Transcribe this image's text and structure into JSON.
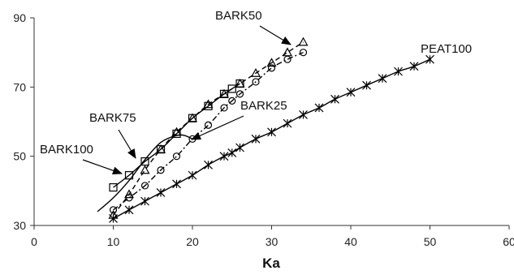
{
  "chart_data": {
    "type": "scatter",
    "title": "",
    "xlabel": "Ka",
    "ylabel": "",
    "xlim": [
      0,
      60
    ],
    "ylim": [
      30,
      90
    ],
    "xticks": [
      0,
      10,
      20,
      30,
      40,
      50,
      60
    ],
    "yticks": [
      30,
      50,
      70,
      90
    ],
    "grid": false,
    "legend": "none",
    "series": [
      {
        "name": "PEAT100",
        "marker": "asterisk",
        "line": "solid",
        "x": [
          10,
          12,
          14,
          16,
          18,
          20,
          22,
          24,
          25,
          26,
          28,
          30,
          32,
          34,
          36,
          38,
          40,
          42,
          44,
          46,
          48,
          50
        ],
        "y": [
          32,
          34.5,
          37,
          39.5,
          42,
          44.5,
          47.5,
          50,
          51,
          52.5,
          55,
          57,
          59.5,
          62,
          64,
          66.5,
          68.5,
          70.5,
          72.5,
          74.5,
          76,
          78
        ]
      },
      {
        "name": "BARK25",
        "marker": "circle",
        "line": "dashdot",
        "x": [
          10,
          12,
          14,
          16,
          18,
          20,
          22,
          24,
          25,
          26,
          28,
          30,
          32,
          34
        ],
        "y": [
          34.5,
          38,
          41.5,
          46,
          50,
          55,
          59,
          64,
          66,
          68,
          71.5,
          75.5,
          78,
          80
        ]
      },
      {
        "name": "BARK50",
        "marker": "triangle",
        "line": "dashed",
        "x": [
          10,
          12,
          14,
          16,
          18,
          20,
          22,
          24,
          26,
          28,
          30,
          32,
          34
        ],
        "y": [
          33,
          39,
          46,
          52,
          57,
          61,
          65,
          68,
          71,
          74,
          77,
          80,
          83
        ]
      },
      {
        "name": "BARK75",
        "marker": "none",
        "line": "solid",
        "x": [
          8,
          10,
          12,
          14,
          16,
          18,
          19,
          20
        ],
        "y": [
          34,
          38,
          43,
          49,
          54,
          56,
          56,
          55
        ]
      },
      {
        "name": "BARK100",
        "marker": "square",
        "line": "solid",
        "x": [
          10,
          12,
          14,
          16,
          18,
          20,
          22,
          24,
          25,
          26
        ],
        "y": [
          41,
          44.5,
          48.5,
          52,
          56.5,
          61,
          64.5,
          68,
          69.5,
          71
        ]
      }
    ],
    "annotations": [
      {
        "text": "BARK50",
        "target_series": "BARK50",
        "arrow": true
      },
      {
        "text": "PEAT100",
        "target_series": "PEAT100",
        "arrow": false
      },
      {
        "text": "BARK25",
        "target_series": "BARK25",
        "arrow": true
      },
      {
        "text": "BARK75",
        "target_series": "BARK75",
        "arrow": true
      },
      {
        "text": "BARK100",
        "target_series": "BARK100",
        "arrow": true
      }
    ]
  }
}
